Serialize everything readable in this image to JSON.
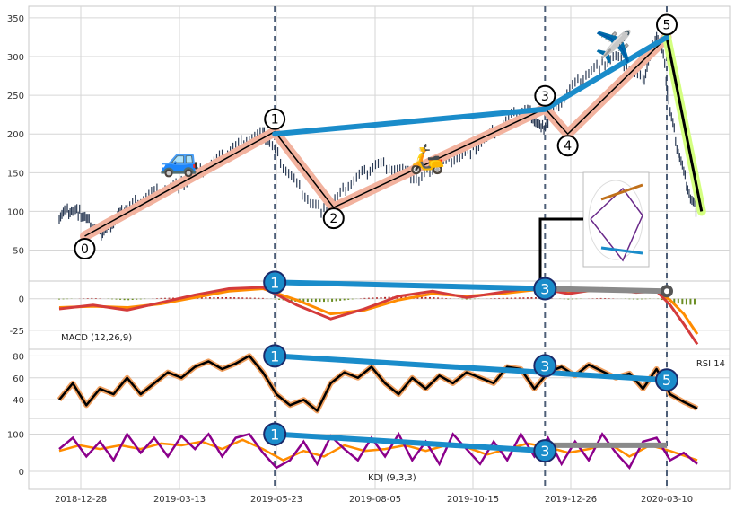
{
  "chart_data": {
    "type": "line",
    "x_ticks": [
      "2018-12-28",
      "2019-03-13",
      "2019-05-23",
      "2019-08-05",
      "2019-10-15",
      "2019-12-26",
      "2020-03-10"
    ],
    "panels": [
      {
        "id": "price",
        "ylim": [
          10,
          365
        ],
        "yticks": [
          50,
          100,
          150,
          200,
          250,
          300,
          350
        ],
        "label": ""
      },
      {
        "id": "macd",
        "ylim": [
          -40,
          14
        ],
        "yticks": [
          0,
          -25
        ],
        "label": "MACD (12,26,9)"
      },
      {
        "id": "rsi",
        "ylim": [
          23,
          86
        ],
        "yticks": [
          40,
          60,
          80
        ],
        "label": "RSI 14"
      },
      {
        "id": "kdj",
        "ylim": [
          -48,
          142
        ],
        "yticks": [
          0,
          100
        ],
        "label": "KDJ (9,3,3)"
      }
    ],
    "wave_points": [
      {
        "label": "0",
        "date": "2018-12-31",
        "price": 68
      },
      {
        "label": "1",
        "date": "2019-05-22",
        "price": 203
      },
      {
        "label": "2",
        "date": "2019-07-05",
        "price": 105
      },
      {
        "label": "3",
        "date": "2019-12-10",
        "price": 233
      },
      {
        "label": "4",
        "date": "2019-12-27",
        "price": 200
      },
      {
        "label": "5",
        "date": "2020-03-10",
        "price": 325
      },
      {
        "label": "",
        "date": "2020-04-05",
        "price": 100
      }
    ],
    "price_trendline": {
      "from": {
        "date": "2019-05-22",
        "price": 200
      },
      "to": {
        "date": "2019-12-10",
        "price": 232
      },
      "to2": {
        "date": "2020-03-10",
        "price": 325
      }
    },
    "wave_marker_labels": [
      "0",
      "1",
      "2",
      "3",
      "4",
      "5"
    ],
    "vertical_lines": [
      "2019-05-22",
      "2019-12-10",
      "2020-03-10"
    ],
    "price_series": [
      [
        0,
        95
      ],
      [
        0.01,
        100
      ],
      [
        0.02,
        102
      ],
      [
        0.03,
        98
      ],
      [
        0.04,
        90
      ],
      [
        0.05,
        80
      ],
      [
        0.06,
        72
      ],
      [
        0.07,
        78
      ],
      [
        0.08,
        88
      ],
      [
        0.09,
        96
      ],
      [
        0.1,
        104
      ],
      [
        0.12,
        115
      ],
      [
        0.14,
        125
      ],
      [
        0.16,
        130
      ],
      [
        0.18,
        135
      ],
      [
        0.2,
        145
      ],
      [
        0.22,
        160
      ],
      [
        0.24,
        170
      ],
      [
        0.26,
        185
      ],
      [
        0.28,
        195
      ],
      [
        0.3,
        200
      ],
      [
        0.31,
        190
      ],
      [
        0.33,
        160
      ],
      [
        0.35,
        135
      ],
      [
        0.37,
        112
      ],
      [
        0.39,
        100
      ],
      [
        0.41,
        118
      ],
      [
        0.43,
        138
      ],
      [
        0.45,
        150
      ],
      [
        0.47,
        162
      ],
      [
        0.49,
        157
      ],
      [
        0.51,
        150
      ],
      [
        0.53,
        140
      ],
      [
        0.55,
        158
      ],
      [
        0.57,
        165
      ],
      [
        0.59,
        172
      ],
      [
        0.61,
        180
      ],
      [
        0.63,
        195
      ],
      [
        0.65,
        210
      ],
      [
        0.67,
        225
      ],
      [
        0.69,
        232
      ],
      [
        0.7,
        220
      ],
      [
        0.71,
        205
      ],
      [
        0.72,
        215
      ],
      [
        0.74,
        245
      ],
      [
        0.76,
        265
      ],
      [
        0.78,
        280
      ],
      [
        0.8,
        290
      ],
      [
        0.82,
        300
      ],
      [
        0.84,
        285
      ],
      [
        0.86,
        268
      ],
      [
        0.87,
        300
      ],
      [
        0.88,
        330
      ],
      [
        0.89,
        300
      ],
      [
        0.9,
        230
      ],
      [
        0.91,
        185
      ],
      [
        0.92,
        150
      ],
      [
        0.93,
        118
      ],
      [
        0.94,
        100
      ]
    ],
    "macd": {
      "macd": [
        [
          0,
          -8
        ],
        [
          0.05,
          -5
        ],
        [
          0.1,
          -9
        ],
        [
          0.15,
          -3
        ],
        [
          0.2,
          3
        ],
        [
          0.25,
          8
        ],
        [
          0.3,
          9
        ],
        [
          0.35,
          -5
        ],
        [
          0.4,
          -16
        ],
        [
          0.45,
          -8
        ],
        [
          0.5,
          2
        ],
        [
          0.55,
          6
        ],
        [
          0.6,
          1
        ],
        [
          0.65,
          5
        ],
        [
          0.7,
          9
        ],
        [
          0.75,
          4
        ],
        [
          0.8,
          8
        ],
        [
          0.85,
          5
        ],
        [
          0.88,
          6
        ],
        [
          0.9,
          -5
        ],
        [
          0.92,
          -20
        ],
        [
          0.94,
          -36
        ]
      ],
      "signal": [
        [
          0,
          -7
        ],
        [
          0.05,
          -6
        ],
        [
          0.1,
          -7
        ],
        [
          0.15,
          -4
        ],
        [
          0.2,
          1
        ],
        [
          0.25,
          6
        ],
        [
          0.3,
          8
        ],
        [
          0.35,
          -1
        ],
        [
          0.4,
          -12
        ],
        [
          0.45,
          -9
        ],
        [
          0.5,
          -1
        ],
        [
          0.55,
          4
        ],
        [
          0.6,
          2
        ],
        [
          0.65,
          4
        ],
        [
          0.7,
          7
        ],
        [
          0.75,
          5
        ],
        [
          0.8,
          7
        ],
        [
          0.85,
          6
        ],
        [
          0.88,
          6
        ],
        [
          0.9,
          -1
        ],
        [
          0.92,
          -12
        ],
        [
          0.94,
          -28
        ]
      ]
    },
    "rsi": [
      [
        0,
        40
      ],
      [
        0.02,
        55
      ],
      [
        0.04,
        35
      ],
      [
        0.06,
        50
      ],
      [
        0.08,
        45
      ],
      [
        0.1,
        60
      ],
      [
        0.12,
        45
      ],
      [
        0.14,
        55
      ],
      [
        0.16,
        65
      ],
      [
        0.18,
        60
      ],
      [
        0.2,
        70
      ],
      [
        0.22,
        75
      ],
      [
        0.24,
        68
      ],
      [
        0.26,
        73
      ],
      [
        0.28,
        80
      ],
      [
        0.3,
        65
      ],
      [
        0.32,
        45
      ],
      [
        0.34,
        35
      ],
      [
        0.36,
        40
      ],
      [
        0.38,
        30
      ],
      [
        0.4,
        55
      ],
      [
        0.42,
        65
      ],
      [
        0.44,
        60
      ],
      [
        0.46,
        70
      ],
      [
        0.48,
        55
      ],
      [
        0.5,
        45
      ],
      [
        0.52,
        60
      ],
      [
        0.54,
        50
      ],
      [
        0.56,
        62
      ],
      [
        0.58,
        55
      ],
      [
        0.6,
        65
      ],
      [
        0.62,
        60
      ],
      [
        0.64,
        55
      ],
      [
        0.66,
        70
      ],
      [
        0.68,
        68
      ],
      [
        0.7,
        50
      ],
      [
        0.72,
        65
      ],
      [
        0.74,
        70
      ],
      [
        0.76,
        62
      ],
      [
        0.78,
        72
      ],
      [
        0.8,
        66
      ],
      [
        0.82,
        60
      ],
      [
        0.84,
        64
      ],
      [
        0.86,
        50
      ],
      [
        0.88,
        68
      ],
      [
        0.9,
        45
      ],
      [
        0.92,
        38
      ],
      [
        0.94,
        32
      ]
    ],
    "kdj": {
      "k": [
        [
          0,
          60
        ],
        [
          0.02,
          90
        ],
        [
          0.04,
          40
        ],
        [
          0.06,
          80
        ],
        [
          0.08,
          30
        ],
        [
          0.1,
          100
        ],
        [
          0.12,
          50
        ],
        [
          0.14,
          90
        ],
        [
          0.16,
          40
        ],
        [
          0.18,
          95
        ],
        [
          0.2,
          60
        ],
        [
          0.22,
          100
        ],
        [
          0.24,
          40
        ],
        [
          0.26,
          90
        ],
        [
          0.28,
          100
        ],
        [
          0.3,
          50
        ],
        [
          0.32,
          10
        ],
        [
          0.34,
          30
        ],
        [
          0.36,
          80
        ],
        [
          0.38,
          20
        ],
        [
          0.4,
          95
        ],
        [
          0.42,
          60
        ],
        [
          0.44,
          30
        ],
        [
          0.46,
          90
        ],
        [
          0.48,
          40
        ],
        [
          0.5,
          100
        ],
        [
          0.52,
          30
        ],
        [
          0.54,
          80
        ],
        [
          0.56,
          20
        ],
        [
          0.58,
          100
        ],
        [
          0.6,
          60
        ],
        [
          0.62,
          20
        ],
        [
          0.64,
          80
        ],
        [
          0.66,
          30
        ],
        [
          0.68,
          100
        ],
        [
          0.7,
          40
        ],
        [
          0.72,
          90
        ],
        [
          0.74,
          20
        ],
        [
          0.76,
          80
        ],
        [
          0.78,
          30
        ],
        [
          0.8,
          100
        ],
        [
          0.82,
          50
        ],
        [
          0.84,
          10
        ],
        [
          0.86,
          80
        ],
        [
          0.88,
          90
        ],
        [
          0.9,
          30
        ],
        [
          0.92,
          50
        ],
        [
          0.94,
          20
        ]
      ],
      "d": [
        [
          0,
          55
        ],
        [
          0.03,
          70
        ],
        [
          0.06,
          60
        ],
        [
          0.09,
          70
        ],
        [
          0.12,
          60
        ],
        [
          0.15,
          75
        ],
        [
          0.18,
          70
        ],
        [
          0.21,
          80
        ],
        [
          0.24,
          60
        ],
        [
          0.27,
          85
        ],
        [
          0.3,
          60
        ],
        [
          0.33,
          30
        ],
        [
          0.36,
          55
        ],
        [
          0.39,
          40
        ],
        [
          0.42,
          70
        ],
        [
          0.45,
          55
        ],
        [
          0.48,
          60
        ],
        [
          0.51,
          70
        ],
        [
          0.54,
          55
        ],
        [
          0.57,
          70
        ],
        [
          0.6,
          65
        ],
        [
          0.63,
          45
        ],
        [
          0.66,
          60
        ],
        [
          0.69,
          75
        ],
        [
          0.72,
          65
        ],
        [
          0.75,
          50
        ],
        [
          0.78,
          60
        ],
        [
          0.81,
          75
        ],
        [
          0.84,
          40
        ],
        [
          0.87,
          70
        ],
        [
          0.9,
          55
        ],
        [
          0.94,
          30
        ]
      ]
    },
    "macd_trendline": {
      "from_date": "2019-05-22",
      "to_date": "2019-12-10",
      "from": 13,
      "to": 8
    },
    "rsi_trendline": {
      "from_date": "2019-05-22",
      "to_date": "2020-03-10",
      "from": 80,
      "to": 58
    },
    "kdj_trendline": {
      "from_date": "2019-05-22",
      "to_date": "2019-12-10",
      "from": 100,
      "to": 55
    },
    "gray_lines": {
      "macd": {
        "from_date": "2019-12-10",
        "to_date": "2020-03-10",
        "from": 8,
        "to": 6
      },
      "kdj": {
        "from_date": "2019-12-10",
        "to_date": "2020-03-10",
        "from": 70,
        "to": 70
      }
    },
    "emoji": {
      "car": "🚙",
      "scooter": "🛵",
      "plane": "✈️"
    },
    "colors": {
      "bg": "#ffffff",
      "grid": "#d6d6d6",
      "candle": "#2b3b55",
      "wave_band": "#f2b29e",
      "trend_blue": "#1a8cca",
      "gray": "#8a8a8a",
      "vline": "#4e5f78",
      "rsi_orange": "#f0a060",
      "kdj_purple": "#8b008b",
      "kdj_orange": "#ff8c00",
      "macd_red": "#d43b3b",
      "macd_orange": "#ff8c00",
      "hist_red": "#b22222",
      "hist_green": "#6b8e23",
      "green_band": "#d4ff80"
    }
  }
}
